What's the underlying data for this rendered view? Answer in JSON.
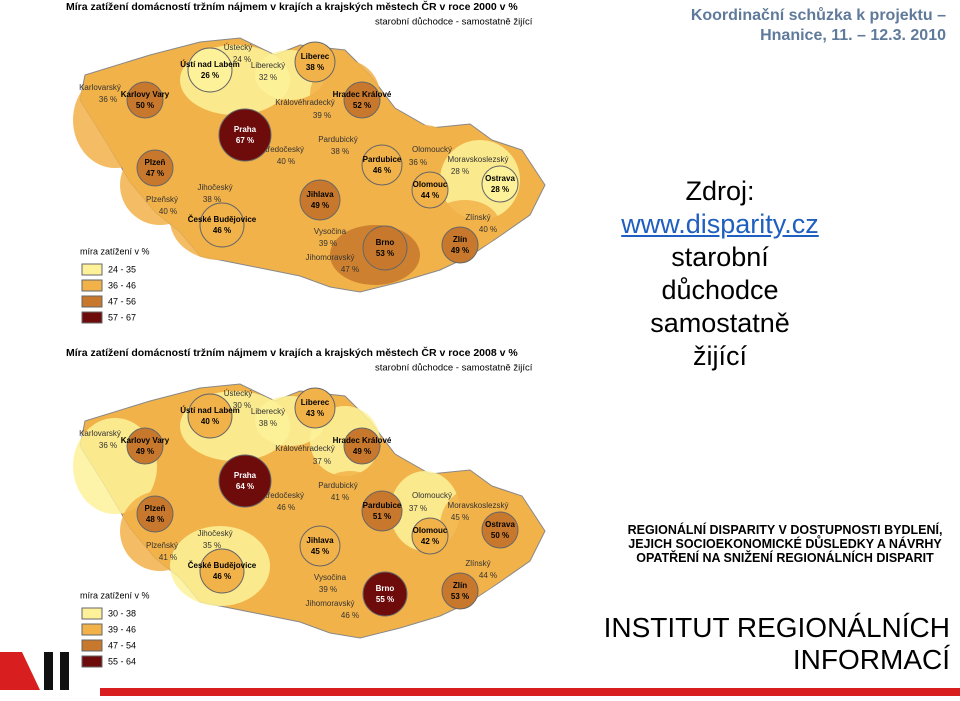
{
  "maps": [
    {
      "title": "Míra zatížení domácností tržním nájmem v krajích a krajských městech ČR v roce 2000 v %",
      "subtitle": "starobní důchodce - samostatně žijící",
      "regions": [
        {
          "name": "Karlovarský",
          "value": "36 %"
        },
        {
          "name": "Ústecký",
          "value": "24 %"
        },
        {
          "name": "Liberecký",
          "value": "32 %"
        },
        {
          "name": "Královéhradecký",
          "value": "39 %"
        },
        {
          "name": "Středočeský",
          "value": "40 %"
        },
        {
          "name": "Pardubický",
          "value": "38 %"
        },
        {
          "name": "Olomoucký",
          "value": "36 %"
        },
        {
          "name": "Moravskoslezský",
          "value": "28 %"
        },
        {
          "name": "Plzeňský",
          "value": "40 %"
        },
        {
          "name": "Jihočeský",
          "value": "38 %"
        },
        {
          "name": "Vysočina",
          "value": "39 %"
        },
        {
          "name": "Jihomoravský",
          "value": "47 %"
        },
        {
          "name": "Zlínský",
          "value": "40 %"
        }
      ],
      "cities": [
        {
          "name": "Ústí nad Labem",
          "value": "26 %"
        },
        {
          "name": "Liberec",
          "value": "38 %"
        },
        {
          "name": "Karlovy Vary",
          "value": "50 %"
        },
        {
          "name": "Hradec Králové",
          "value": "52 %"
        },
        {
          "name": "Praha",
          "value": "67 %"
        },
        {
          "name": "Pardubice",
          "value": "46 %"
        },
        {
          "name": "Ostrava",
          "value": "28 %"
        },
        {
          "name": "Plzeň",
          "value": "47 %"
        },
        {
          "name": "Olomouc",
          "value": "44 %"
        },
        {
          "name": "České Budějovice",
          "value": "46 %"
        },
        {
          "name": "Jihlava",
          "value": "49 %"
        },
        {
          "name": "Brno",
          "value": "53 %"
        },
        {
          "name": "Zlín",
          "value": "49 %"
        }
      ],
      "legend": {
        "title": "míra zatížení v %",
        "items": [
          {
            "label": "24 - 35",
            "color": "#fdf29a"
          },
          {
            "label": "36 - 46",
            "color": "#f2b24a"
          },
          {
            "label": "47 - 56",
            "color": "#c7782c"
          },
          {
            "label": "57 - 67",
            "color": "#6e0c0c"
          }
        ]
      }
    },
    {
      "title": "Míra zatížení domácností tržním nájmem v krajích a krajských městech ČR v roce 2008 v %",
      "subtitle": "starobní důchodce - samostatně žijící",
      "regions": [
        {
          "name": "Karlovarský",
          "value": "36 %"
        },
        {
          "name": "Ústecký",
          "value": "30 %"
        },
        {
          "name": "Liberecký",
          "value": "38 %"
        },
        {
          "name": "Královéhradecký",
          "value": "37 %"
        },
        {
          "name": "Středočeský",
          "value": "46 %"
        },
        {
          "name": "Pardubický",
          "value": "41 %"
        },
        {
          "name": "Olomoucký",
          "value": "37 %"
        },
        {
          "name": "Moravskoslezský",
          "value": "45 %"
        },
        {
          "name": "Plzeňský",
          "value": "41 %"
        },
        {
          "name": "Jihočeský",
          "value": "35 %"
        },
        {
          "name": "Vysočina",
          "value": "39 %"
        },
        {
          "name": "Jihomoravský",
          "value": "46 %"
        },
        {
          "name": "Zlínský",
          "value": "44 %"
        }
      ],
      "cities": [
        {
          "name": "Ústí nad Labem",
          "value": "40 %"
        },
        {
          "name": "Liberec",
          "value": "43 %"
        },
        {
          "name": "Karlovy Vary",
          "value": "49 %"
        },
        {
          "name": "Hradec Králové",
          "value": "49 %"
        },
        {
          "name": "Praha",
          "value": "64 %"
        },
        {
          "name": "Pardubice",
          "value": "51 %"
        },
        {
          "name": "Ostrava",
          "value": "50 %"
        },
        {
          "name": "Plzeň",
          "value": "48 %"
        },
        {
          "name": "Olomouc",
          "value": "42 %"
        },
        {
          "name": "České Budějovice",
          "value": "46 %"
        },
        {
          "name": "Jihlava",
          "value": "45 %"
        },
        {
          "name": "Brno",
          "value": "55 %"
        },
        {
          "name": "Zlín",
          "value": "53 %"
        }
      ],
      "legend": {
        "title": "míra zatížení v %",
        "items": [
          {
            "label": "30 - 38",
            "color": "#fdf29a"
          },
          {
            "label": "39 - 46",
            "color": "#f2b24a"
          },
          {
            "label": "47 - 54",
            "color": "#c7782c"
          },
          {
            "label": "55 - 64",
            "color": "#6e0c0c"
          }
        ]
      }
    }
  ],
  "header": "Koordinační schůzka k projektu – Hnanice, 11. – 12.3. 2010",
  "source": {
    "label": "Zdroj:",
    "link": "www.disparity.cz",
    "description": "starobní důchodce samostatně žijící"
  },
  "project": "REGIONÁLNÍ DISPARITY V DOSTUPNOSTI BYDLENÍ, JEJICH SOCIOEKONOMICKÉ DŮSLEDKY A NÁVRHY OPATŘENÍ NA SNIŽENÍ REGIONÁLNÍCH DISPARIT",
  "institute": "INSTITUT REGIONÁLNÍCH INFORMACÍ"
}
